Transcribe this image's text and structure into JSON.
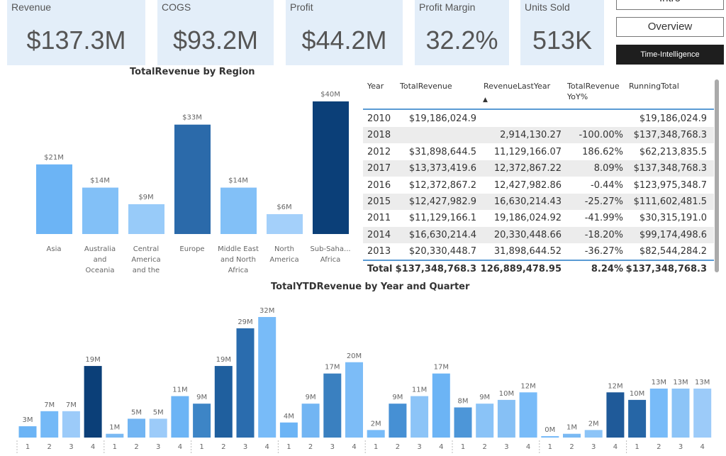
{
  "kpis": [
    {
      "label": "Revenue",
      "value": "$137.3M"
    },
    {
      "label": "COGS",
      "value": "$93.2M"
    },
    {
      "label": "Profit",
      "value": "$44.2M"
    },
    {
      "label": "Profit Margin",
      "value": "32.2%"
    },
    {
      "label": "Units Sold",
      "value": "513K"
    }
  ],
  "nav": {
    "intro": "Intro",
    "overview": "Overview",
    "time_intelligence": "Time-Intelligence"
  },
  "table": {
    "headers": [
      "Year",
      "TotalRevenue",
      "RevenueLastYear",
      "TotalRevenue YoY%",
      "RunningTotal"
    ],
    "sort_indicator": "▲",
    "rows": [
      [
        "2010",
        "$19,186,024.9",
        "",
        "",
        "$19,186,024.9"
      ],
      [
        "2018",
        "",
        "2,914,130.27",
        "-100.00%",
        "$137,348,768.3"
      ],
      [
        "2012",
        "$31,898,644.5",
        "11,129,166.07",
        "186.62%",
        "$62,213,835.5"
      ],
      [
        "2017",
        "$13,373,419.6",
        "12,372,867.22",
        "8.09%",
        "$137,348,768.3"
      ],
      [
        "2016",
        "$12,372,867.2",
        "12,427,982.86",
        "-0.44%",
        "$123,975,348.7"
      ],
      [
        "2015",
        "$12,427,982.9",
        "16,630,214.43",
        "-25.27%",
        "$111,602,481.5"
      ],
      [
        "2011",
        "$11,129,166.1",
        "19,186,024.92",
        "-41.99%",
        "$30,315,191.0"
      ],
      [
        "2014",
        "$16,630,214.4",
        "20,330,448.66",
        "-18.20%",
        "$99,174,498.6"
      ],
      [
        "2013",
        "$20,330,448.7",
        "31,898,644.52",
        "-36.27%",
        "$82,544,284.2"
      ]
    ],
    "total": [
      "Total",
      "$137,348,768.3",
      "126,889,478.95",
      "8.24%",
      "$137,348,768.3"
    ]
  },
  "chart_data": [
    {
      "type": "bar",
      "title": "TotalRevenue by Region",
      "categories": [
        "Asia",
        "Australia and Oceania",
        "Central America and the Caribbean",
        "Europe",
        "Middle East and North Africa",
        "North America",
        "Sub-Saharan Africa"
      ],
      "tick_labels": [
        [
          "Asia"
        ],
        [
          "Australia",
          "and",
          "Oceania"
        ],
        [
          "Central",
          "America",
          "and the"
        ],
        [
          "Europe"
        ],
        [
          "Middle East",
          "and North",
          "Africa"
        ],
        [
          "North",
          "America"
        ],
        [
          "Sub-Saha...",
          "Africa"
        ]
      ],
      "values": [
        21,
        14,
        9,
        33,
        14,
        6,
        40
      ],
      "data_labels": [
        "$21M",
        "$14M",
        "$9M",
        "$33M",
        "$14M",
        "$6M",
        "$40M"
      ],
      "unit": "$M",
      "colors": [
        "#6cb4f5",
        "#82c0f7",
        "#98cbf9",
        "#2b6aaa",
        "#82c0f7",
        "#a4d0fa",
        "#0b3f78"
      ],
      "ylim": [
        0,
        40
      ]
    },
    {
      "type": "bar",
      "title": "TotalYTDRevenue by Year and Quarter",
      "categories": [
        "1",
        "2",
        "3",
        "4",
        "1",
        "2",
        "3",
        "4",
        "1",
        "2",
        "3",
        "4",
        "1",
        "2",
        "3",
        "4",
        "1",
        "2",
        "3",
        "4",
        "1",
        "2",
        "3",
        "4",
        "1",
        "2",
        "3",
        "4",
        "1",
        "2",
        "3",
        "4"
      ],
      "values": [
        3,
        7,
        7,
        19,
        1,
        5,
        5,
        11,
        9,
        19,
        29,
        32,
        4,
        9,
        17,
        20,
        2,
        9,
        11,
        17,
        8,
        9,
        10,
        12,
        0,
        1,
        2,
        12,
        10,
        13,
        13,
        13
      ],
      "data_labels": [
        "3M",
        "7M",
        "7M",
        "19M",
        "1M",
        "5M",
        "5M",
        "11M",
        "9M",
        "19M",
        "29M",
        "32M",
        "4M",
        "9M",
        "17M",
        "20M",
        "2M",
        "9M",
        "11M",
        "17M",
        "8M",
        "9M",
        "10M",
        "12M",
        "0M",
        "1M",
        "2M",
        "12M",
        "10M",
        "13M",
        "13M",
        "13M"
      ],
      "unit": "M",
      "colors": [
        "#6cb4f5",
        "#74b9f7",
        "#9ccbf9",
        "#0b3f78",
        "#7ab9f3",
        "#72b5f3",
        "#9ccbf9",
        "#6cb4f5",
        "#3d85c6",
        "#1f5f9e",
        "#2a6cae",
        "#78bbf8",
        "#6cb4f5",
        "#72b5f3",
        "#3a80c0",
        "#7cbcf7",
        "#78bbf8",
        "#4690d4",
        "#8cc4f7",
        "#6cb4f5",
        "#4d96d8",
        "#8ac3f7",
        "#86c0f5",
        "#78bbf8",
        "#78bbf8",
        "#7ab9f3",
        "#8cc4f7",
        "#1f5a99",
        "#2666a6",
        "#78bbf8",
        "#8cc4f7",
        "#9ccbf9"
      ],
      "ylim": [
        0,
        32
      ]
    }
  ]
}
